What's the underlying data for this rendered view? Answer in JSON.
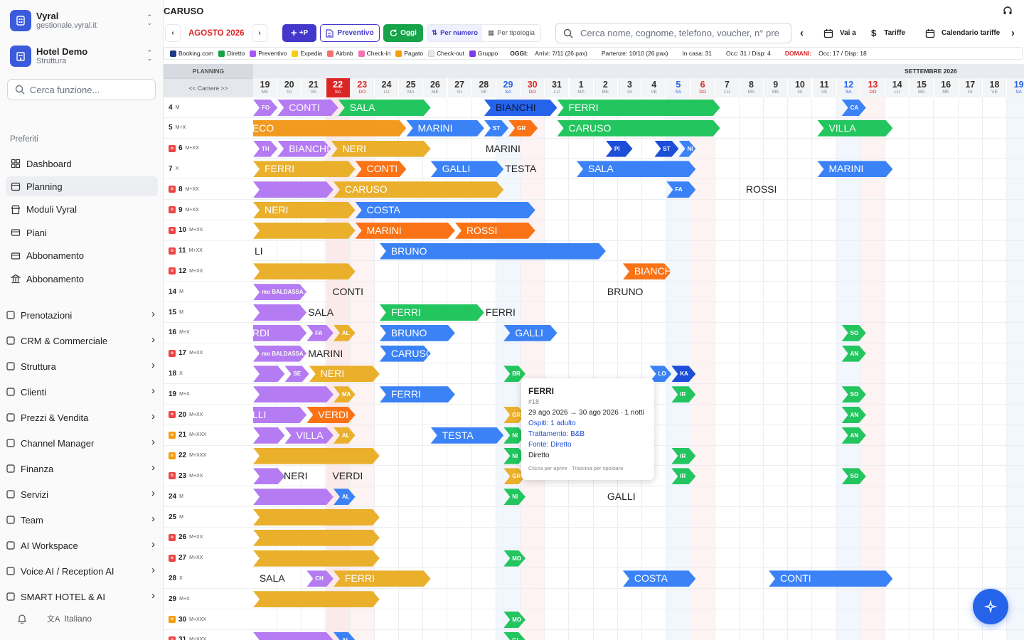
{
  "colors": {
    "booking": "#1e3a8a",
    "diretto": "#16a34a",
    "preventivo": "#a855f7",
    "expedia": "#facc15",
    "airbnb": "#f87171",
    "checkin": "#f472b6",
    "pagato": "#f59e0b",
    "checkout": "#e5e7eb",
    "gruppo": "#7c3aed"
  },
  "sidebar": {
    "workspace": {
      "name": "Vyral",
      "sub": "gestionale.vyral.it"
    },
    "hotel": {
      "name": "Hotel Demo",
      "sub": "Struttura"
    },
    "search_placeholder": "Cerca funzione...",
    "favorites_label": "Preferiti",
    "favorites": [
      {
        "label": "Dashboard",
        "icon": "grid-icon"
      },
      {
        "label": "Planning",
        "icon": "calendar-icon",
        "active": true
      },
      {
        "label": "Moduli Vyral",
        "icon": "store-icon"
      },
      {
        "label": "Piani",
        "icon": "card-icon"
      },
      {
        "label": "Abbonamento",
        "icon": "card-icon"
      },
      {
        "label": "Abbonamento",
        "icon": "bank-icon"
      }
    ],
    "groups": [
      "Prenotazioni",
      "CRM & Commerciale",
      "Struttura",
      "Clienti",
      "Prezzi & Vendita",
      "Channel Manager",
      "Finanza",
      "Servizi",
      "Team",
      "AI Workspace",
      "Voice AI / Reception AI",
      "SMART HOTEL & AI"
    ],
    "language": "Italiano"
  },
  "header": {
    "title": "CARUSO",
    "month": "AGOSTO 2026",
    "add_label": "+P",
    "preventivo": "Preventivo",
    "oggi": "Oggi",
    "per_numero": "Per numero",
    "per_tipologia": "Per tipologia",
    "search_placeholder": "Cerca nome, cognome, telefono, voucher, n° pre",
    "vai_a": "Vai a",
    "tariffe": "Tariffe",
    "calendario_tariffe": "Calendario tariffe"
  },
  "legend": {
    "items": [
      {
        "label": "Booking.com",
        "color": "#1e3a8a"
      },
      {
        "label": "Diretto",
        "color": "#16a34a"
      },
      {
        "label": "Preventivo",
        "color": "#a855f7"
      },
      {
        "label": "Expedia",
        "color": "#facc15"
      },
      {
        "label": "Airbnb",
        "color": "#f87171"
      },
      {
        "label": "Check-in",
        "color": "#f472b6"
      },
      {
        "label": "Pagato",
        "color": "#f59e0b"
      },
      {
        "label": "Check-out",
        "color": "#e5e7eb"
      },
      {
        "label": "Gruppo",
        "color": "#7c3aed"
      }
    ],
    "oggi_label": "OGGI:",
    "arrivi": "Arrivi: 7/11 (26 pax)",
    "partenze": "Partenze: 10/10 (26 pax)",
    "in_casa": "In casa: 31",
    "occ_oggi": "Occ: 31 / Disp: 4",
    "domani_label": "DOMANI:",
    "occ_domani": "Occ: 17 / Disp: 18"
  },
  "grid": {
    "planning_label": "PLANNING",
    "camere_label": "<< Camere >>",
    "next_month": "SETTEMBRE 2026",
    "days": [
      {
        "n": "19",
        "w": "ME"
      },
      {
        "n": "20",
        "w": "GI"
      },
      {
        "n": "21",
        "w": "VE"
      },
      {
        "n": "22",
        "w": "SA",
        "today": true
      },
      {
        "n": "23",
        "w": "DO",
        "t": "sun"
      },
      {
        "n": "24",
        "w": "LU"
      },
      {
        "n": "25",
        "w": "MA"
      },
      {
        "n": "26",
        "w": "ME"
      },
      {
        "n": "27",
        "w": "GI"
      },
      {
        "n": "28",
        "w": "VE"
      },
      {
        "n": "29",
        "w": "SA",
        "t": "sat"
      },
      {
        "n": "30",
        "w": "DO",
        "t": "sun"
      },
      {
        "n": "31",
        "w": "LU"
      },
      {
        "n": "1",
        "w": "MA"
      },
      {
        "n": "2",
        "w": "ME"
      },
      {
        "n": "3",
        "w": "GI"
      },
      {
        "n": "4",
        "w": "VE"
      },
      {
        "n": "5",
        "w": "SA",
        "t": "sat"
      },
      {
        "n": "6",
        "w": "DO",
        "t": "sun"
      },
      {
        "n": "7",
        "w": "LU"
      },
      {
        "n": "8",
        "w": "MA"
      },
      {
        "n": "9",
        "w": "ME"
      },
      {
        "n": "10",
        "w": "GI"
      },
      {
        "n": "11",
        "w": "VE"
      },
      {
        "n": "12",
        "w": "SA",
        "t": "sat"
      },
      {
        "n": "13",
        "w": "DO",
        "t": "sun"
      },
      {
        "n": "14",
        "w": "LU"
      },
      {
        "n": "15",
        "w": "MA"
      },
      {
        "n": "16",
        "w": "ME"
      },
      {
        "n": "17",
        "w": "GI"
      },
      {
        "n": "18",
        "w": "VE"
      },
      {
        "n": "19",
        "w": "SA",
        "t": "sat"
      }
    ],
    "rooms": [
      {
        "n": "4",
        "t": "M",
        "b": ""
      },
      {
        "n": "5",
        "t": "M+X",
        "b": ""
      },
      {
        "n": "6",
        "t": "M+XX",
        "b": "red"
      },
      {
        "n": "7",
        "t": "X",
        "b": ""
      },
      {
        "n": "8",
        "t": "M+XX",
        "b": "red"
      },
      {
        "n": "9",
        "t": "M+XX",
        "b": "red"
      },
      {
        "n": "10",
        "t": "M+XX",
        "b": "red"
      },
      {
        "n": "11",
        "t": "M+XX",
        "b": "red"
      },
      {
        "n": "12",
        "t": "M+XX",
        "b": "red"
      },
      {
        "n": "14",
        "t": "M",
        "b": ""
      },
      {
        "n": "15",
        "t": "M",
        "b": ""
      },
      {
        "n": "16",
        "t": "M+X",
        "b": ""
      },
      {
        "n": "17",
        "t": "M+XX",
        "b": "red"
      },
      {
        "n": "18",
        "t": "X",
        "b": ""
      },
      {
        "n": "19",
        "t": "M+X",
        "b": ""
      },
      {
        "n": "20",
        "t": "M+XX",
        "b": "red"
      },
      {
        "n": "21",
        "t": "M+XXX",
        "b": "orange"
      },
      {
        "n": "22",
        "t": "M+XXX",
        "b": "orange"
      },
      {
        "n": "23",
        "t": "M+XX",
        "b": "red"
      },
      {
        "n": "24",
        "t": "M",
        "b": ""
      },
      {
        "n": "25",
        "t": "M",
        "b": ""
      },
      {
        "n": "26",
        "t": "M+XX",
        "b": "red"
      },
      {
        "n": "27",
        "t": "M+XX",
        "b": "red"
      },
      {
        "n": "28",
        "t": "X",
        "b": ""
      },
      {
        "n": "29",
        "t": "M+X",
        "b": ""
      },
      {
        "n": "30",
        "t": "M+XXX",
        "b": "orange"
      },
      {
        "n": "31",
        "t": "M+XXX",
        "b": "red"
      }
    ],
    "bookings": [
      {
        "r": 0,
        "s": 0,
        "e": 1,
        "c": "purple",
        "l": "FO",
        "k": "sm"
      },
      {
        "r": 0,
        "s": 1,
        "e": 3.5,
        "c": "purple",
        "l": "CONTI"
      },
      {
        "r": 0,
        "s": 3.5,
        "e": 7.3,
        "c": "green",
        "l": "SALA"
      },
      {
        "r": 0,
        "s": 9.5,
        "e": 12.5,
        "c": "blue",
        "l": "BIANCHI",
        "k": "dk"
      },
      {
        "r": 0,
        "s": 12.5,
        "e": 19.2,
        "c": "green",
        "l": "FERRI"
      },
      {
        "r": 0,
        "s": 24.2,
        "e": 25.2,
        "c": "blue",
        "l": "CA",
        "k": "sm"
      },
      {
        "r": 1,
        "s": -0.5,
        "e": 6.3,
        "c": "orange",
        "l": "ECO"
      },
      {
        "r": 1,
        "s": 6.3,
        "e": 9.5,
        "c": "blue",
        "l": "MARINI"
      },
      {
        "r": 1,
        "s": 9.5,
        "e": 10.5,
        "c": "blue",
        "l": "ST",
        "k": "sm"
      },
      {
        "r": 1,
        "s": 10.5,
        "e": 11.7,
        "c": "dorange",
        "l": "GR",
        "k": "sm"
      },
      {
        "r": 1,
        "s": 12.5,
        "e": 19.2,
        "c": "green",
        "l": "CARUSO"
      },
      {
        "r": 1,
        "s": 23.2,
        "e": 26.3,
        "c": "green",
        "l": "VILLA"
      },
      {
        "r": 2,
        "s": 0,
        "e": 1,
        "c": "purple",
        "l": "TH",
        "k": "sm"
      },
      {
        "r": 2,
        "s": 1,
        "e": 3.2,
        "c": "purple",
        "l": "BIANCHI"
      },
      {
        "r": 2,
        "s": 3.2,
        "e": 7.3,
        "c": "yorange",
        "l": "NERI"
      },
      {
        "r": 2,
        "s": 14.5,
        "e": 15.6,
        "c": "navy",
        "l": "PI",
        "k": "sm"
      },
      {
        "r": 2,
        "s": 16.5,
        "e": 17.5,
        "c": "navy",
        "l": "ST",
        "k": "sm"
      },
      {
        "r": 2,
        "s": 17.5,
        "e": 18.2,
        "c": "blue",
        "l": "NI",
        "k": "sm"
      },
      {
        "r": 3,
        "s": 0,
        "e": 4.2,
        "c": "yorange",
        "l": "FERRI"
      },
      {
        "r": 3,
        "s": 4.2,
        "e": 6.3,
        "c": "dorange",
        "l": "CONTI"
      },
      {
        "r": 3,
        "s": 7.3,
        "e": 10.3,
        "c": "blue",
        "l": "GALLI"
      },
      {
        "r": 3,
        "s": 13.3,
        "e": 18.2,
        "c": "blue",
        "l": "SALA"
      },
      {
        "r": 3,
        "s": 23.2,
        "e": 26.3,
        "c": "blue",
        "l": "MARINI"
      },
      {
        "r": 4,
        "s": 0,
        "e": 3.3,
        "c": "purple",
        "l": ""
      },
      {
        "r": 4,
        "s": 3.3,
        "e": 10.3,
        "c": "yorange",
        "l": "CARUSO"
      },
      {
        "r": 4,
        "s": 17,
        "e": 18.2,
        "c": "blue",
        "l": "FA",
        "k": "sm"
      },
      {
        "r": 5,
        "s": 0,
        "e": 4.2,
        "c": "yorange",
        "l": "NERI"
      },
      {
        "r": 5,
        "s": 4.2,
        "e": 11.6,
        "c": "blue",
        "l": "COSTA"
      },
      {
        "r": 6,
        "s": 0,
        "e": 4.2,
        "c": "yorange",
        "l": ""
      },
      {
        "r": 6,
        "s": 4.2,
        "e": 8.3,
        "c": "dorange",
        "l": "MARINI"
      },
      {
        "r": 6,
        "s": 8.3,
        "e": 11.6,
        "c": "dorange",
        "l": "ROSSI"
      },
      {
        "r": 7,
        "s": 5.2,
        "e": 14.5,
        "c": "blue",
        "l": "BRUNO"
      },
      {
        "r": 8,
        "s": 0,
        "e": 4.2,
        "c": "yorange",
        "l": ""
      },
      {
        "r": 8,
        "s": 15.2,
        "e": 17.2,
        "c": "dorange",
        "l": "BIANCHI"
      },
      {
        "r": 9,
        "s": 0,
        "e": 2.2,
        "c": "purple",
        "l": "mo BALDASSA...",
        "k": "md"
      },
      {
        "r": 10,
        "s": 0,
        "e": 2.2,
        "c": "purple",
        "l": ""
      },
      {
        "r": 10,
        "s": 5.2,
        "e": 9.5,
        "c": "green",
        "l": "FERRI"
      },
      {
        "r": 11,
        "s": -0.5,
        "e": 2.2,
        "c": "purple",
        "l": "RDI"
      },
      {
        "r": 11,
        "s": 2.2,
        "e": 3.3,
        "c": "purple",
        "l": "FA",
        "k": "sm"
      },
      {
        "r": 11,
        "s": 3.3,
        "e": 4.2,
        "c": "yorange",
        "l": "AL",
        "k": "sm"
      },
      {
        "r": 11,
        "s": 5.2,
        "e": 8.3,
        "c": "blue",
        "l": "BRUNO"
      },
      {
        "r": 11,
        "s": 10.3,
        "e": 12.5,
        "c": "blue",
        "l": "GALLI"
      },
      {
        "r": 11,
        "s": 24.2,
        "e": 25.2,
        "c": "green",
        "l": "SO",
        "k": "sm"
      },
      {
        "r": 12,
        "s": 0,
        "e": 2.2,
        "c": "purple",
        "l": "mo BALDASSA...",
        "k": "md"
      },
      {
        "r": 12,
        "s": 5.2,
        "e": 7.3,
        "c": "blue",
        "l": "CARUSO"
      },
      {
        "r": 12,
        "s": 24.2,
        "e": 25.2,
        "c": "green",
        "l": "AN",
        "k": "sm"
      },
      {
        "r": 13,
        "s": 0,
        "e": 1.3,
        "c": "purple",
        "l": ""
      },
      {
        "r": 13,
        "s": 1.3,
        "e": 2.3,
        "c": "purple",
        "l": "SE",
        "k": "sm"
      },
      {
        "r": 13,
        "s": 2.3,
        "e": 5.2,
        "c": "yorange",
        "l": "NERI"
      },
      {
        "r": 13,
        "s": 10.3,
        "e": 11.2,
        "c": "green",
        "l": "BR",
        "k": "sm"
      },
      {
        "r": 13,
        "s": 16.3,
        "e": 17.2,
        "c": "blue",
        "l": "LO",
        "k": "sm"
      },
      {
        "r": 13,
        "s": 17.2,
        "e": 18.2,
        "c": "navy",
        "l": "KA",
        "k": "sm"
      },
      {
        "r": 14,
        "s": 0,
        "e": 3.3,
        "c": "purple",
        "l": ""
      },
      {
        "r": 14,
        "s": 3.3,
        "e": 4.2,
        "c": "yorange",
        "l": "MA",
        "k": "sm"
      },
      {
        "r": 14,
        "s": 5.2,
        "e": 8.3,
        "c": "blue",
        "l": "FERRI"
      },
      {
        "r": 14,
        "s": 17.2,
        "e": 18.2,
        "c": "green",
        "l": "IR",
        "k": "sm"
      },
      {
        "r": 14,
        "s": 24.2,
        "e": 25.2,
        "c": "green",
        "l": "SO",
        "k": "sm"
      },
      {
        "r": 15,
        "s": -0.5,
        "e": 2.2,
        "c": "purple",
        "l": "LLI"
      },
      {
        "r": 15,
        "s": 2.2,
        "e": 4.2,
        "c": "dorange",
        "l": "VERDI"
      },
      {
        "r": 15,
        "s": 10.3,
        "e": 11.2,
        "c": "yorange",
        "l": "GR",
        "k": "sm"
      },
      {
        "r": 15,
        "s": 24.2,
        "e": 25.2,
        "c": "green",
        "l": "AN",
        "k": "sm"
      },
      {
        "r": 16,
        "s": 0,
        "e": 1.3,
        "c": "purple",
        "l": ""
      },
      {
        "r": 16,
        "s": 1.3,
        "e": 3.3,
        "c": "purple",
        "l": "VILLA"
      },
      {
        "r": 16,
        "s": 3.3,
        "e": 4.2,
        "c": "yorange",
        "l": "AL",
        "k": "sm"
      },
      {
        "r": 16,
        "s": 7.3,
        "e": 10.3,
        "c": "blue",
        "l": "TESTA"
      },
      {
        "r": 16,
        "s": 10.3,
        "e": 11.2,
        "c": "green",
        "l": "NI",
        "k": "sm"
      },
      {
        "r": 16,
        "s": 24.2,
        "e": 25.2,
        "c": "green",
        "l": "AN",
        "k": "sm"
      },
      {
        "r": 17,
        "s": 0,
        "e": 5.2,
        "c": "yorange",
        "l": ""
      },
      {
        "r": 17,
        "s": 10.3,
        "e": 11.2,
        "c": "green",
        "l": "NI",
        "k": "sm"
      },
      {
        "r": 17,
        "s": 17.2,
        "e": 18.2,
        "c": "green",
        "l": "IR",
        "k": "sm"
      },
      {
        "r": 18,
        "s": 0,
        "e": 1.3,
        "c": "purple",
        "l": ""
      },
      {
        "r": 18,
        "s": 10.3,
        "e": 11.2,
        "c": "yorange",
        "l": "GR",
        "k": "sm"
      },
      {
        "r": 18,
        "s": 17.2,
        "e": 18.2,
        "c": "green",
        "l": "IR",
        "k": "sm"
      },
      {
        "r": 18,
        "s": 24.2,
        "e": 25.2,
        "c": "green",
        "l": "SO",
        "k": "sm"
      },
      {
        "r": 19,
        "s": 0,
        "e": 3.3,
        "c": "purple",
        "l": ""
      },
      {
        "r": 19,
        "s": 3.3,
        "e": 4.2,
        "c": "blue",
        "l": "AL",
        "k": "sm"
      },
      {
        "r": 19,
        "s": 10.3,
        "e": 11.2,
        "c": "green",
        "l": "NI",
        "k": "sm"
      },
      {
        "r": 20,
        "s": 0,
        "e": 5.2,
        "c": "yorange",
        "l": ""
      },
      {
        "r": 21,
        "s": 0,
        "e": 5.2,
        "c": "yorange",
        "l": ""
      },
      {
        "r": 22,
        "s": 0,
        "e": 5.2,
        "c": "yorange",
        "l": ""
      },
      {
        "r": 22,
        "s": 10.3,
        "e": 11.2,
        "c": "green",
        "l": "MO",
        "k": "sm"
      },
      {
        "r": 23,
        "s": 2.2,
        "e": 3.3,
        "c": "purple",
        "l": "CH",
        "k": "sm"
      },
      {
        "r": 23,
        "s": 3.3,
        "e": 7.3,
        "c": "yorange",
        "l": "FERRI"
      },
      {
        "r": 23,
        "s": 15.2,
        "e": 18.2,
        "c": "blue",
        "l": "COSTA"
      },
      {
        "r": 23,
        "s": 21.2,
        "e": 26.3,
        "c": "blue",
        "l": "CONTI"
      },
      {
        "r": 24,
        "s": 0,
        "e": 5.2,
        "c": "yorange",
        "l": ""
      },
      {
        "r": 25,
        "s": 10.3,
        "e": 11.2,
        "c": "green",
        "l": "MO",
        "k": "sm"
      },
      {
        "r": 26,
        "s": 0,
        "e": 3.3,
        "c": "purple",
        "l": ""
      },
      {
        "r": 26,
        "s": 3.3,
        "e": 4.2,
        "c": "blue",
        "l": "AL",
        "k": "sm"
      },
      {
        "r": 26,
        "s": 10.3,
        "e": 11.2,
        "c": "green",
        "l": "GI",
        "k": "sm"
      }
    ],
    "plain": [
      {
        "r": 2,
        "x": 9.5,
        "l": "MARINI"
      },
      {
        "r": 3,
        "x": 10.3,
        "l": "TESTA"
      },
      {
        "r": 4,
        "x": 20.2,
        "l": "ROSSI"
      },
      {
        "r": 7,
        "x": 0,
        "l": "LI"
      },
      {
        "r": 9,
        "x": 3.2,
        "l": "CONTI"
      },
      {
        "r": 9,
        "x": 14.5,
        "l": "BRUNO"
      },
      {
        "r": 10,
        "x": 2.2,
        "l": "SALA"
      },
      {
        "r": 10,
        "x": 9.5,
        "l": "FERRI"
      },
      {
        "r": 12,
        "x": 2.2,
        "l": "MARINI"
      },
      {
        "r": 18,
        "x": 1.2,
        "l": "NERI"
      },
      {
        "r": 18,
        "x": 3.2,
        "l": "VERDI"
      },
      {
        "r": 19,
        "x": 14.5,
        "l": "GALLI"
      },
      {
        "r": 23,
        "x": 0.2,
        "l": "SALA"
      }
    ]
  },
  "tooltip": {
    "name": "FERRI",
    "id": "#18",
    "dates": "29 ago 2026 → 30 ago 2026 · 1 notti",
    "ospiti": "Ospiti: 1 adulto",
    "trattamento": "Trattamento: B&B",
    "fonte": "Fonte: Diretto",
    "channel": "Diretto",
    "hint": "Clicca per aprire · Trascina per spostare"
  }
}
